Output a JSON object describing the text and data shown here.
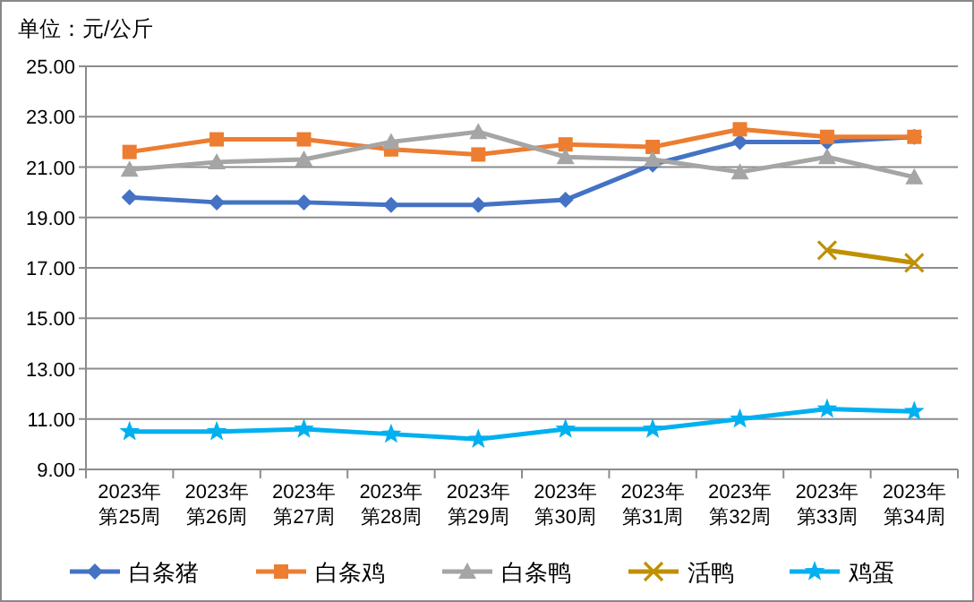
{
  "chart_data": {
    "type": "line",
    "ylabel": "单位：元/公斤",
    "categories": [
      "2023年第25周",
      "2023年第26周",
      "2023年第27周",
      "2023年第28周",
      "2023年第29周",
      "2023年第30周",
      "2023年第31周",
      "2023年第32周",
      "2023年第33周",
      "2023年第34周"
    ],
    "series": [
      {
        "name": "白条猪",
        "color": "#4472c4",
        "marker": "diamond",
        "values": [
          19.8,
          19.6,
          19.6,
          19.5,
          19.5,
          19.7,
          21.1,
          22.0,
          22.0,
          22.2
        ]
      },
      {
        "name": "白条鸡",
        "color": "#ed7d31",
        "marker": "square",
        "values": [
          21.6,
          22.1,
          22.1,
          21.7,
          21.5,
          21.9,
          21.8,
          22.5,
          22.2,
          22.2
        ]
      },
      {
        "name": "白条鸭",
        "color": "#a5a5a5",
        "marker": "triangle",
        "values": [
          20.9,
          21.2,
          21.3,
          22.0,
          22.4,
          21.4,
          21.3,
          20.8,
          21.4,
          20.6
        ]
      },
      {
        "name": "活鸭",
        "color": "#bf9000",
        "marker": "cross",
        "values": [
          null,
          null,
          null,
          null,
          null,
          null,
          null,
          null,
          17.7,
          17.2
        ]
      },
      {
        "name": "鸡蛋",
        "color": "#00b0f0",
        "marker": "star",
        "values": [
          10.5,
          10.5,
          10.6,
          10.4,
          10.2,
          10.6,
          10.6,
          11.0,
          11.4,
          11.3
        ]
      }
    ],
    "ylim": [
      9,
      25
    ],
    "yticks": [
      {
        "value": 9,
        "label": "9.00"
      },
      {
        "value": 11,
        "label": "11.00"
      },
      {
        "value": 13,
        "label": "13.00"
      },
      {
        "value": 15,
        "label": "15.00"
      },
      {
        "value": 17,
        "label": "17.00"
      },
      {
        "value": 19,
        "label": "19.00"
      },
      {
        "value": 21,
        "label": "21.00"
      },
      {
        "value": 23,
        "label": "23.00"
      },
      {
        "value": 25,
        "label": "25.00"
      }
    ],
    "grid": "y",
    "legend": "bottom",
    "line_style": "solid"
  }
}
